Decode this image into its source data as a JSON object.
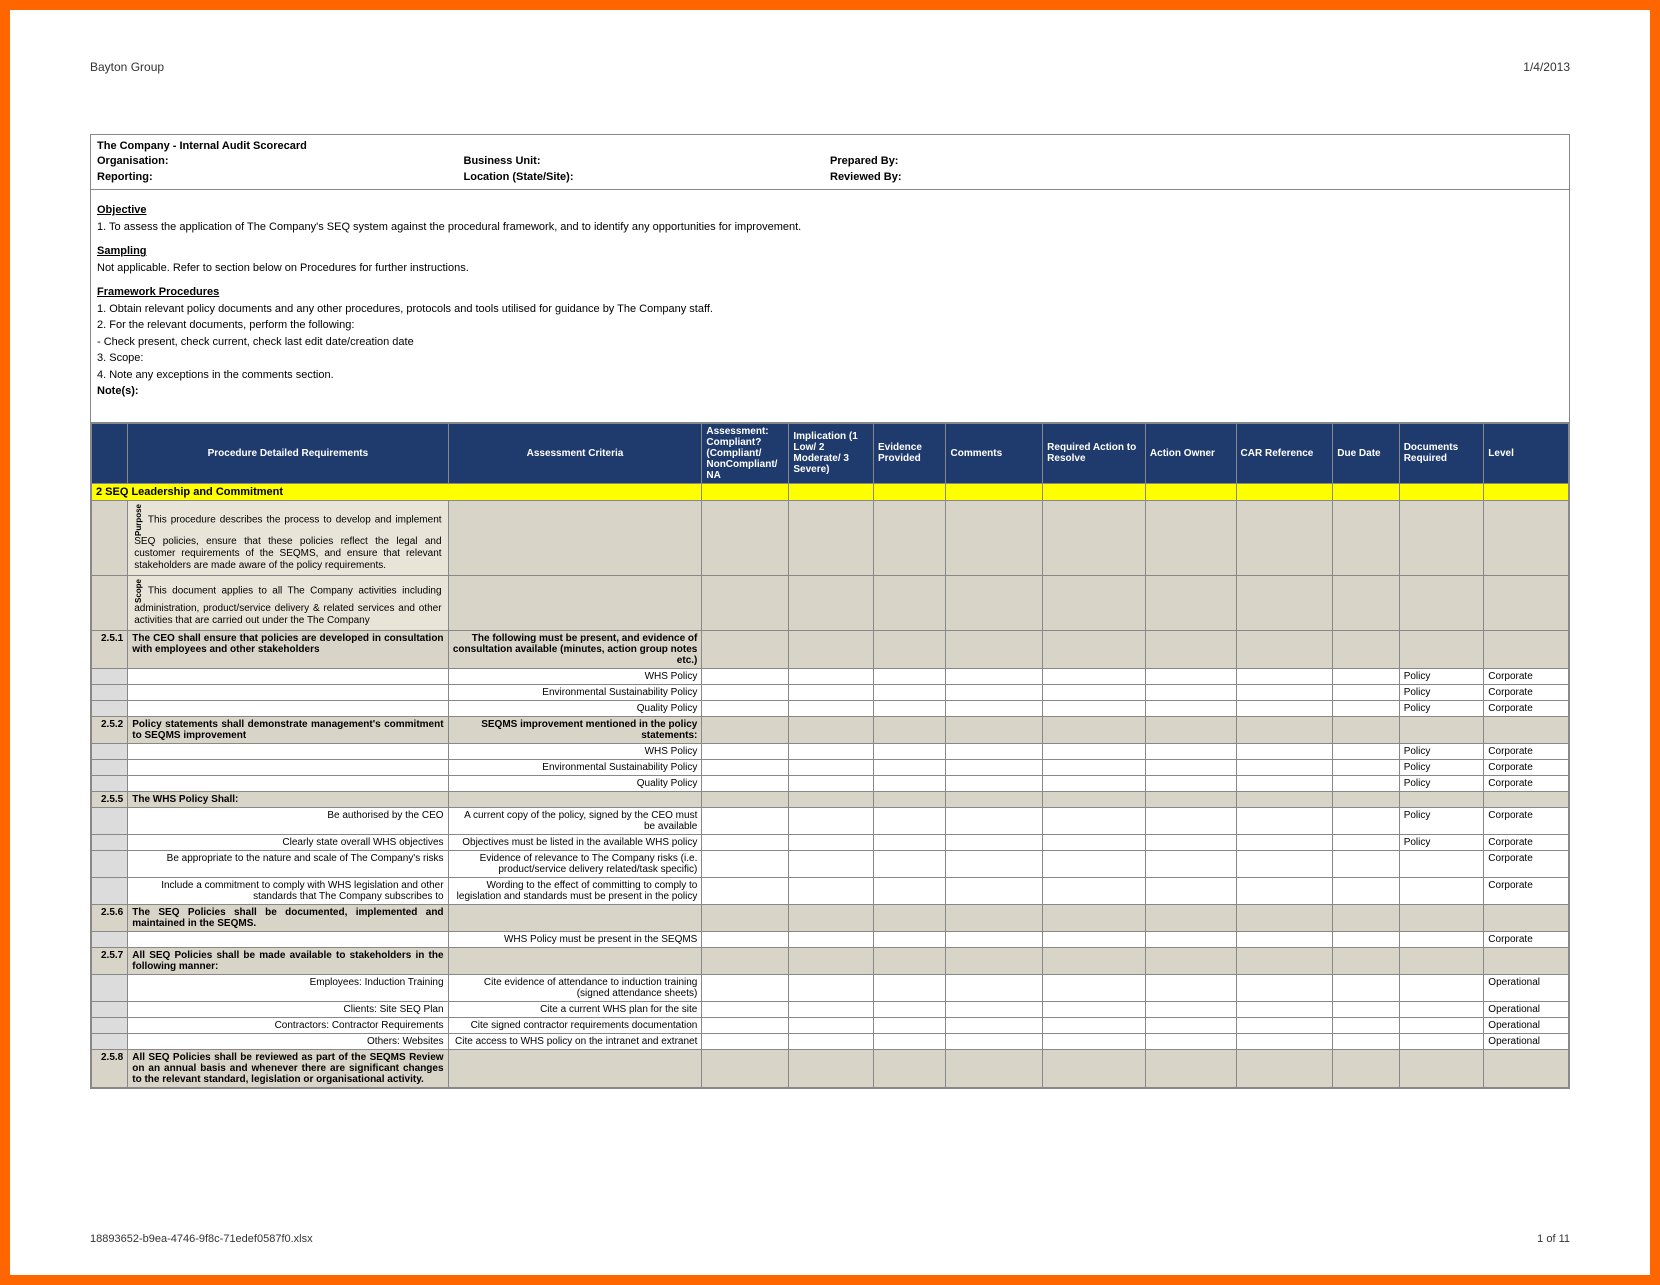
{
  "header": {
    "company": "Bayton Group",
    "date": "1/4/2013"
  },
  "info": {
    "title": "The Company - Internal Audit Scorecard",
    "row1": [
      {
        "label": "Organisation:"
      },
      {
        "label": "Business Unit:"
      },
      {
        "label": "Prepared By:"
      },
      {
        "label": ""
      }
    ],
    "row2": [
      {
        "label": "Reporting:"
      },
      {
        "label": "Location (State/Site):"
      },
      {
        "label": "Reviewed By:"
      },
      {
        "label": ""
      }
    ]
  },
  "narrative": {
    "objective_h": "Objective",
    "objective": "1. To assess the application of The Company's SEQ system against the procedural framework, and to identify any opportunities for improvement.",
    "sampling_h": "Sampling",
    "sampling": "Not applicable. Refer to section below on Procedures for further instructions.",
    "framework_h": "Framework Procedures",
    "fw1": "1. Obtain relevant policy documents and any other procedures, protocols and tools utilised for guidance by The Company staff.",
    "fw2": "2. For the relevant documents, perform the following:",
    "fw2a": "  - Check present, check current, check last edit date/creation date",
    "fw3": "3. Scope:",
    "fw4": "4. Note any exceptions in the comments section.",
    "notes": "Note(s):"
  },
  "columns": [
    "",
    "Procedure Detailed Requirements",
    "Assessment Criteria",
    "Assessment: Compliant? (Compliant/ NonCompliant/ NA",
    "Implication (1 Low/ 2 Moderate/ 3 Severe)",
    "Evidence Provided",
    "Comments",
    "Required Action to Resolve",
    "Action Owner",
    "CAR Reference",
    "Due Date",
    "Documents Required",
    "Level"
  ],
  "section": {
    "num": "2",
    "title": "SEQ Leadership and Commitment"
  },
  "purpose_label": "Purpose",
  "purpose": "This procedure describes the process to develop and implement SEQ policies, ensure that these policies reflect the legal and customer requirements of the SEQMS, and ensure that relevant stakeholders are made aware of the policy requirements.",
  "scope_label": "Scope",
  "scope": "This document applies to all The Company activities including administration, product/service delivery & related services and other activities that are carried out under the The Company",
  "rows": [
    {
      "type": "sub",
      "num": "2.5.1",
      "req": "The CEO shall ensure that policies are developed in consultation with employees and other stakeholders",
      "crit": "The following must be present, and evidence of consultation available (minutes, action group notes etc.)"
    },
    {
      "type": "data",
      "req": "",
      "crit": "WHS Policy",
      "docs": "Policy",
      "level": "Corporate"
    },
    {
      "type": "data",
      "req": "",
      "crit": "Environmental Sustainability Policy",
      "docs": "Policy",
      "level": "Corporate"
    },
    {
      "type": "data",
      "req": "",
      "crit": "Quality Policy",
      "docs": "Policy",
      "level": "Corporate"
    },
    {
      "type": "sub",
      "num": "2.5.2",
      "req": "Policy statements shall demonstrate management's commitment to SEQMS improvement",
      "crit": "SEQMS improvement mentioned in the policy statements:"
    },
    {
      "type": "data",
      "req": "",
      "crit": "WHS Policy",
      "docs": "Policy",
      "level": "Corporate"
    },
    {
      "type": "data",
      "req": "",
      "crit": "Environmental Sustainability Policy",
      "docs": "Policy",
      "level": "Corporate"
    },
    {
      "type": "data",
      "req": "",
      "crit": "Quality Policy",
      "docs": "Policy",
      "level": "Corporate"
    },
    {
      "type": "sub",
      "num": "2.5.5",
      "req": "The WHS Policy Shall:",
      "crit": ""
    },
    {
      "type": "data",
      "req": "Be authorised by the CEO",
      "crit": "A current copy of the policy, signed by the CEO must be available",
      "docs": "Policy",
      "level": "Corporate"
    },
    {
      "type": "data",
      "req": "Clearly state overall WHS objectives",
      "crit": "Objectives must be listed in the available WHS policy",
      "docs": "Policy",
      "level": "Corporate"
    },
    {
      "type": "data",
      "req": "Be appropriate to the nature and scale of The Company's risks",
      "crit": "Evidence of relevance to The Company risks (i.e. product/service delivery related/task specific)",
      "docs": "",
      "level": "Corporate"
    },
    {
      "type": "data",
      "req": "Include a commitment to comply with WHS legislation and other standards that The Company subscribes to",
      "crit": "Wording to the effect of committing to comply to legislation and standards must be present in the policy",
      "docs": "",
      "level": "Corporate"
    },
    {
      "type": "sub",
      "num": "2.5.6",
      "req": "The SEQ Policies shall be documented, implemented and maintained in the SEQMS.",
      "crit": ""
    },
    {
      "type": "data",
      "req": "",
      "crit": "WHS Policy must be present in the SEQMS",
      "docs": "",
      "level": "Corporate"
    },
    {
      "type": "sub",
      "num": "2.5.7",
      "req": "All SEQ Policies shall be made available to stakeholders in the following manner:",
      "crit": ""
    },
    {
      "type": "data",
      "req": "Employees: Induction Training",
      "crit": "Cite evidence of attendance to induction training (signed attendance sheets)",
      "docs": "",
      "level": "Operational"
    },
    {
      "type": "data",
      "req": "Clients: Site SEQ Plan",
      "crit": "Cite a current WHS plan for the site",
      "docs": "",
      "level": "Operational"
    },
    {
      "type": "data",
      "req": "Contractors: Contractor Requirements",
      "crit": "Cite signed contractor requirements documentation",
      "docs": "",
      "level": "Operational"
    },
    {
      "type": "data",
      "req": "Others: Websites",
      "crit": "Cite access to WHS policy on the intranet and extranet",
      "docs": "",
      "level": "Operational"
    },
    {
      "type": "sub",
      "num": "2.5.8",
      "req": "All SEQ Policies shall be reviewed as part of the SEQMS Review on an annual basis and whenever there are significant changes to the relevant standard, legislation or organisational activity.",
      "crit": ""
    }
  ],
  "footer": {
    "file": "18893652-b9ea-4746-9f8c-71edef0587f0.xlsx",
    "page": "1 of 11"
  }
}
